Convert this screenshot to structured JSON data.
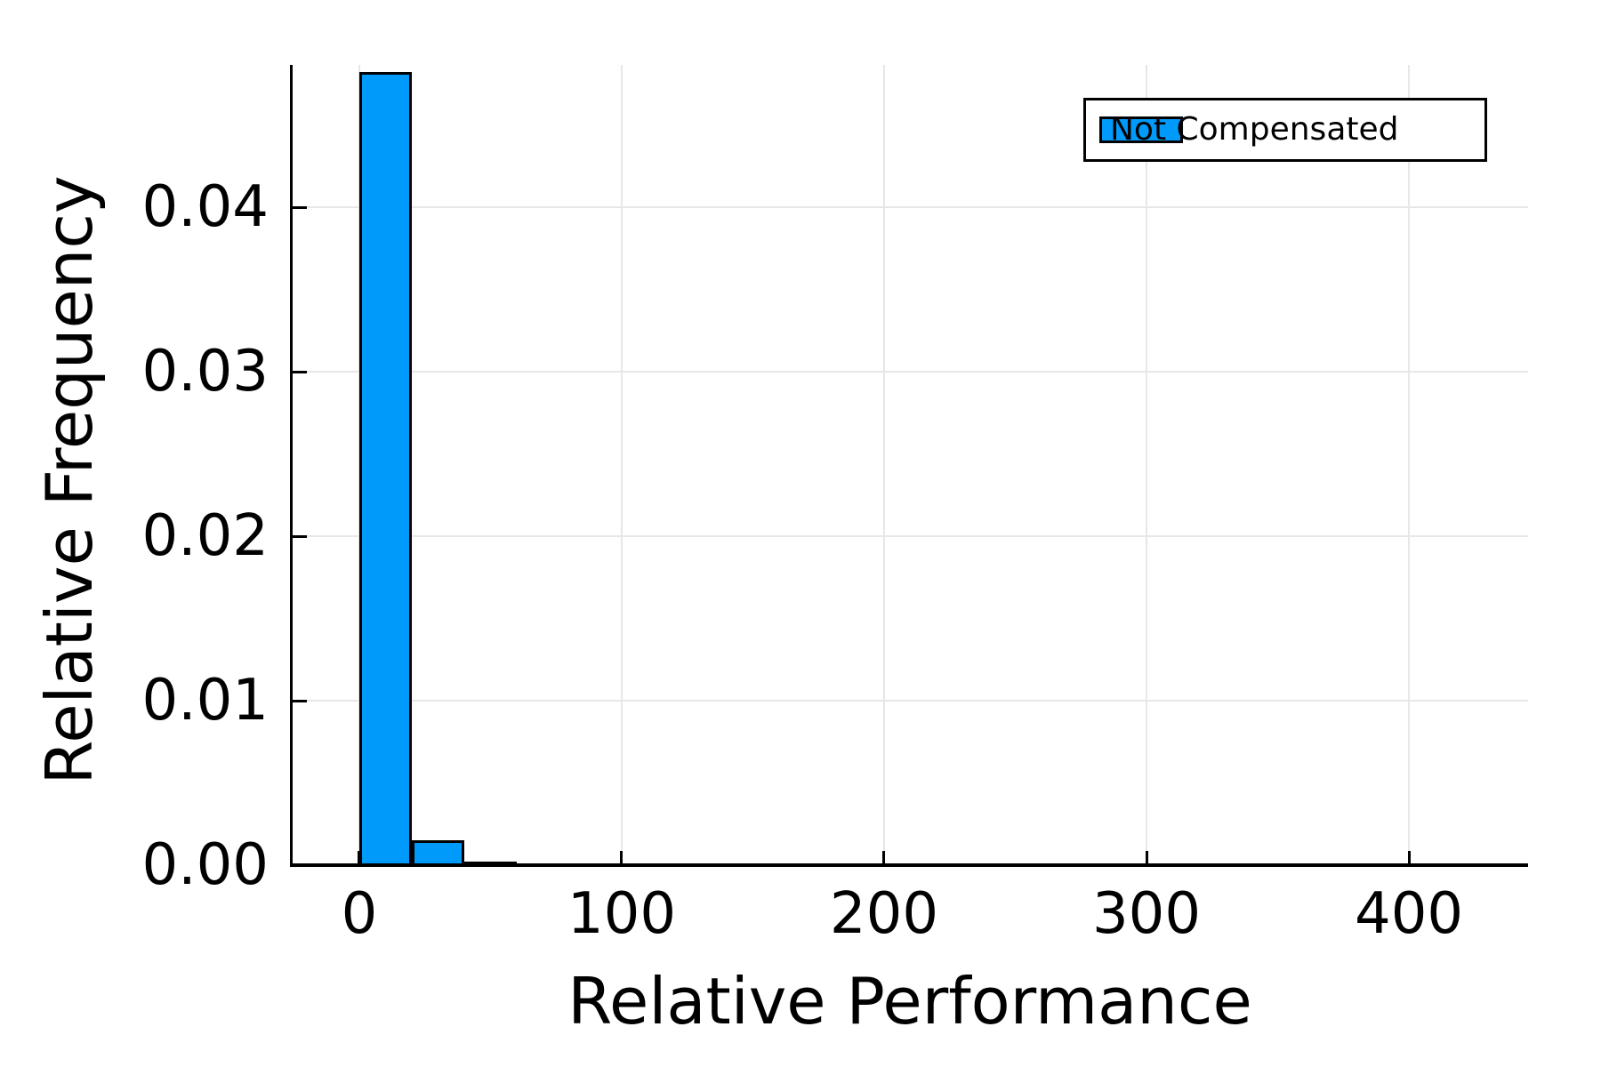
{
  "chart_data": {
    "type": "histogram",
    "title": "",
    "xlabel": "Relative Performance",
    "ylabel": "Relative Frequency",
    "series": [
      {
        "name": "Not Compensated",
        "color": "#009AFA",
        "bin_edges": [
          0,
          20,
          40,
          60,
          80,
          100
        ],
        "values": [
          0.0482,
          0.0015,
          0.00022,
          0.00012,
          6e-05
        ]
      }
    ],
    "bin_width": 20,
    "xlim": [
      -25.4,
      445.4
    ],
    "ylim": [
      0,
      0.04865
    ],
    "xticks": [
      0,
      100,
      200,
      300,
      400
    ],
    "xtick_labels": [
      "0",
      "100",
      "200",
      "300",
      "400"
    ],
    "yticks": [
      0,
      0.01,
      0.02,
      0.03,
      0.04
    ],
    "ytick_labels": [
      "0.00",
      "0.01",
      "0.02",
      "0.03",
      "0.04"
    ],
    "grid": true,
    "legend_position": "top-right",
    "colors": {
      "bar_fill": "#009AFA",
      "bar_edge": "#000000",
      "grid": "#e7e7e7",
      "axis": "#000000",
      "background": "#ffffff"
    }
  }
}
